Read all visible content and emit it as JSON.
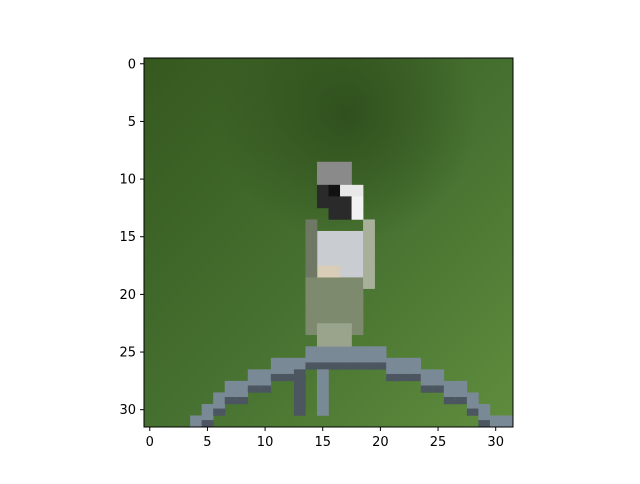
{
  "figure": {
    "kind": "image-plot",
    "subject": "small bird perched on a curved metal arch against a green background",
    "x_ticks": [
      "0",
      "5",
      "10",
      "15",
      "20",
      "25",
      "30"
    ],
    "y_ticks": [
      "0",
      "5",
      "10",
      "15",
      "20",
      "25",
      "30"
    ],
    "grid_size": [
      32,
      32
    ],
    "colors": {
      "background_dark": "#3b5f25",
      "background_light": "#5a8a3c",
      "bird_head": "#2a2a2a",
      "bird_breast": "#c9ccd0",
      "bird_body": "#7d8a6e",
      "arch": "#7a8996",
      "arch_shadow": "#4c5660",
      "axis": "#000000"
    }
  }
}
